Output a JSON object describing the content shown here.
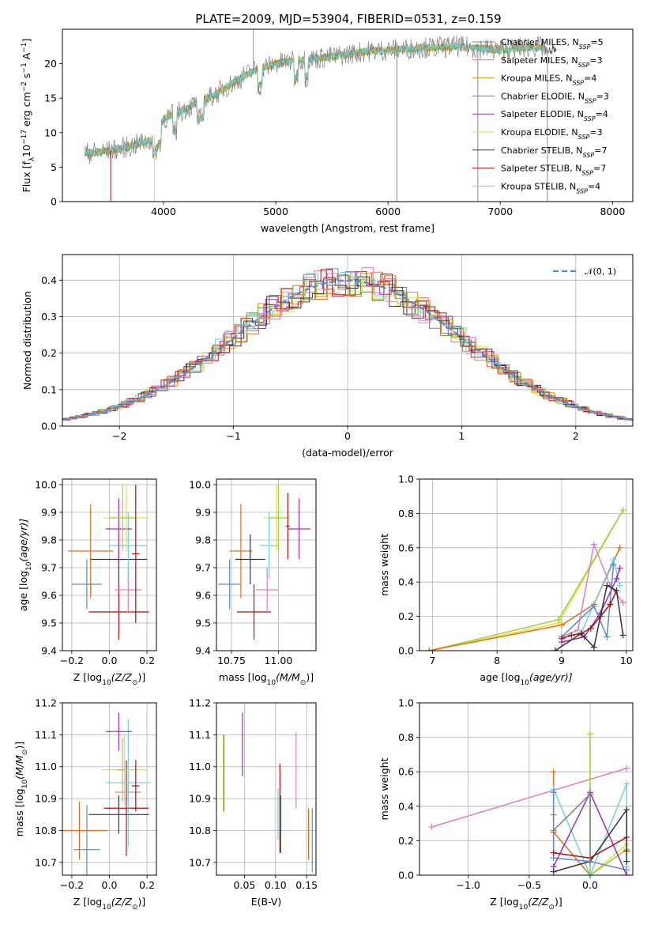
{
  "colors": {
    "chabrier_miles": "#808080",
    "salpeter_miles": "#e07a7a",
    "kroupa_miles": "#d99a00",
    "chabrier_elodie": "#5a9a3a",
    "salpeter_elodie": "#9b30b0",
    "kroupa_elodie": "#e0e040",
    "chabrier_stelib": "#333333",
    "salpeter_stelib": "#b01010",
    "kroupa_stelib": "#70d0e0",
    "normal": "#4a90d9",
    "extra_orange": "#e07020",
    "extra_blue": "#5a8ad0",
    "extra_pink": "#e080c0",
    "extra_lime": "#a0d040"
  },
  "chart_data": [
    {
      "id": "spectrum",
      "type": "line",
      "title": "PLATE=2009, MJD=53904, FIBERID=0531, z=0.159",
      "xlabel": "wavelength [Angstrom, rest frame]",
      "ylabel_main": "Flux [f",
      "ylabel_sub": "λ",
      "ylabel_mid": "10",
      "ylabel_sup": "−17",
      "ylabel_rest": " erg cm",
      "ylabel_sup2": "−2",
      "ylabel_s": " s",
      "ylabel_sup3": "−1",
      "ylabel_A": " A",
      "ylabel_sup4": "−1",
      "ylabel_end": "]",
      "xlim": [
        3100,
        8180
      ],
      "ylim": [
        0,
        25
      ],
      "xticks": [
        "4000",
        "5000",
        "6000",
        "7000",
        "8000"
      ],
      "yticks": [
        "0",
        "5",
        "10",
        "15",
        "20"
      ],
      "legend": [
        {
          "name": "Chabrier MILES, N",
          "sub": "SSP",
          "val": "=5",
          "color": "chabrier_miles"
        },
        {
          "name": "Salpeter MILES, N",
          "sub": "SSP",
          "val": "=3",
          "color": "salpeter_miles"
        },
        {
          "name": "Kroupa MILES, N",
          "sub": "SSP",
          "val": "=4",
          "color": "kroupa_miles"
        },
        {
          "name": "Chabrier ELODIE, N",
          "sub": "SSP",
          "val": "=3",
          "color": "chabrier_elodie"
        },
        {
          "name": "Salpeter ELODIE, N",
          "sub": "SSP",
          "val": "=4",
          "color": "salpeter_elodie"
        },
        {
          "name": "Kroupa ELODIE, N",
          "sub": "SSP",
          "val": "=3",
          "color": "kroupa_elodie"
        },
        {
          "name": "Chabrier STELIB, N",
          "sub": "SSP",
          "val": "=7",
          "color": "chabrier_stelib"
        },
        {
          "name": "Salpeter STELIB, N",
          "sub": "SSP",
          "val": "=7",
          "color": "salpeter_stelib"
        },
        {
          "name": "Kroupa STELIB, N",
          "sub": "SSP",
          "val": "=4",
          "color": "kroupa_stelib"
        }
      ],
      "continuum": [
        [
          3300,
          7.0
        ],
        [
          3500,
          7.3
        ],
        [
          3700,
          8.0
        ],
        [
          3900,
          9.0
        ],
        [
          4000,
          12.0
        ],
        [
          4200,
          13.5
        ],
        [
          4400,
          15.0
        ],
        [
          4600,
          17.0
        ],
        [
          4800,
          19.0
        ],
        [
          5000,
          20.0
        ],
        [
          5200,
          20.5
        ],
        [
          5500,
          21.0
        ],
        [
          5800,
          21.8
        ],
        [
          6000,
          22.0
        ],
        [
          6300,
          22.3
        ],
        [
          6600,
          22.5
        ],
        [
          7000,
          22.0
        ],
        [
          7300,
          22.5
        ],
        [
          7400,
          22.3
        ]
      ],
      "vertical_features": [
        3530,
        3920,
        6080,
        6800,
        7420
      ]
    },
    {
      "id": "residuals",
      "type": "histogram",
      "xlabel": "(data-model)/error",
      "ylabel": "Normed distribution",
      "xlim": [
        -2.5,
        2.5
      ],
      "ylim": [
        0,
        0.47
      ],
      "xticks": [
        "−2",
        "−1",
        "0",
        "1",
        "2"
      ],
      "yticks": [
        "0.0",
        "0.1",
        "0.2",
        "0.3",
        "0.4"
      ],
      "legend_label": "𝒩(0, 1)",
      "bin_width": 0.1
    },
    {
      "id": "age-vs-z",
      "type": "scatter",
      "xlabel": "Z [log",
      "xlabel_sub": "10",
      "xlabel_rest": "(Z/Z",
      "xlabel_sub2": "⊙",
      "xlabel_end": ")]",
      "ylabel": "age  [log",
      "ylabel_sub": "10",
      "ylabel_rest": "(age/yr)]",
      "xlim": [
        -0.25,
        0.25
      ],
      "ylim": [
        9.4,
        10.02
      ],
      "xticks": [
        "−0.2",
        "0.0",
        "0.2"
      ],
      "yticks": [
        "9.4",
        "9.5",
        "9.6",
        "9.7",
        "9.8",
        "9.9",
        "10.0"
      ],
      "points": [
        {
          "x": -0.12,
          "y": 9.64,
          "ex": 0.08,
          "ey": 0.09,
          "color": "extra_blue"
        },
        {
          "x": -0.1,
          "y": 9.76,
          "ex": 0.12,
          "ey": 0.17,
          "color": "extra_orange"
        },
        {
          "x": 0.05,
          "y": 9.73,
          "ex": 0.15,
          "ey": 0.09,
          "color": "chabrier_stelib"
        },
        {
          "x": 0.05,
          "y": 9.54,
          "ex": 0.16,
          "ey": 0.1,
          "color": "salpeter_stelib"
        },
        {
          "x": 0.1,
          "y": 9.62,
          "ex": 0.07,
          "ey": 0.08,
          "color": "extra_pink"
        },
        {
          "x": 0.1,
          "y": 9.78,
          "ex": 0.1,
          "ey": 0.12,
          "color": "kroupa_stelib"
        },
        {
          "x": 0.05,
          "y": 9.84,
          "ex": 0.07,
          "ey": 0.11,
          "color": "salpeter_elodie"
        },
        {
          "x": 0.09,
          "y": 9.88,
          "ex": 0.12,
          "ey": 0.12,
          "color": "kroupa_elodie"
        },
        {
          "x": 0.07,
          "y": 9.88,
          "ex": 0.07,
          "ey": 0.12,
          "color": "extra_lime"
        },
        {
          "x": 0.14,
          "y": 9.75,
          "ex": 0.02,
          "ey": 0.25,
          "color": "salpeter_stelib"
        }
      ]
    },
    {
      "id": "age-vs-mass",
      "type": "scatter",
      "xlabel": "mass [log",
      "xlabel_sub": "10",
      "xlabel_rest": "(M/M",
      "xlabel_sub2": "⊙",
      "xlabel_end": ")]",
      "xlim": [
        10.67,
        11.2
      ],
      "ylim": [
        9.4,
        10.02
      ],
      "xticks": [
        "10.75",
        "11.00"
      ],
      "yticks": [
        "9.4",
        "9.5",
        "9.6",
        "9.7",
        "9.8",
        "9.9",
        "10.0"
      ],
      "points": [
        {
          "x": 10.74,
          "y": 9.64,
          "ex": 0.06,
          "ey": 0.09,
          "color": "extra_blue"
        },
        {
          "x": 10.8,
          "y": 9.76,
          "ex": 0.06,
          "ey": 0.17,
          "color": "extra_orange"
        },
        {
          "x": 10.85,
          "y": 9.73,
          "ex": 0.08,
          "ey": 0.09,
          "color": "chabrier_stelib"
        },
        {
          "x": 10.87,
          "y": 9.54,
          "ex": 0.09,
          "ey": 0.1,
          "color": "salpeter_stelib"
        },
        {
          "x": 10.94,
          "y": 9.62,
          "ex": 0.06,
          "ey": 0.08,
          "color": "extra_pink"
        },
        {
          "x": 10.95,
          "y": 9.78,
          "ex": 0.05,
          "ey": 0.12,
          "color": "kroupa_stelib"
        },
        {
          "x": 11.11,
          "y": 9.84,
          "ex": 0.06,
          "ey": 0.11,
          "color": "salpeter_elodie"
        },
        {
          "x": 10.99,
          "y": 9.88,
          "ex": 0.07,
          "ey": 0.12,
          "color": "kroupa_elodie"
        },
        {
          "x": 11.0,
          "y": 9.88,
          "ex": 0.05,
          "ey": 0.12,
          "color": "extra_lime"
        },
        {
          "x": 11.05,
          "y": 9.85,
          "ex": 0.01,
          "ey": 0.12,
          "color": "salpeter_stelib"
        }
      ]
    },
    {
      "id": "weight-vs-age",
      "type": "line",
      "xlabel": "age  [log",
      "xlabel_sub": "10",
      "xlabel_rest": "(age/yr)]",
      "ylabel": "mass weight",
      "xlim": [
        6.8,
        10.1
      ],
      "ylim": [
        0,
        1.0
      ],
      "xticks": [
        "7",
        "8",
        "9",
        "10"
      ],
      "yticks": [
        "0.0",
        "0.2",
        "0.4",
        "0.6",
        "0.8",
        "1.0"
      ],
      "series": [
        {
          "color": "kroupa_elodie",
          "x": [
            6.95,
            8.95,
            9.95
          ],
          "y": [
            0.0,
            0.16,
            0.82
          ]
        },
        {
          "color": "extra_lime",
          "x": [
            6.95,
            8.95,
            9.95
          ],
          "y": [
            0.0,
            0.18,
            0.82
          ]
        },
        {
          "color": "extra_orange",
          "x": [
            6.95,
            9.0,
            9.5,
            9.9
          ],
          "y": [
            0.0,
            0.15,
            0.27,
            0.6
          ]
        },
        {
          "color": "extra_pink",
          "x": [
            9.0,
            9.25,
            9.5,
            9.75,
            9.95
          ],
          "y": [
            0.08,
            0.12,
            0.62,
            0.38,
            0.28
          ]
        },
        {
          "color": "kroupa_stelib",
          "x": [
            8.9,
            9.3,
            9.8,
            9.9
          ],
          "y": [
            0.0,
            0.1,
            0.53,
            0.38
          ]
        },
        {
          "color": "extra_blue",
          "x": [
            9.0,
            9.5,
            9.7,
            9.8
          ],
          "y": [
            0.08,
            0.26,
            0.08,
            0.5
          ]
        },
        {
          "color": "salpeter_elodie",
          "x": [
            9.0,
            9.35,
            9.6,
            9.85,
            9.9
          ],
          "y": [
            0.05,
            0.08,
            0.22,
            0.42,
            0.48
          ]
        },
        {
          "color": "salpeter_stelib",
          "x": [
            9.0,
            9.15,
            9.3,
            9.45,
            9.6,
            9.75,
            9.85
          ],
          "y": [
            0.07,
            0.09,
            0.1,
            0.13,
            0.2,
            0.27,
            0.35
          ]
        },
        {
          "color": "chabrier_stelib",
          "x": [
            8.9,
            9.3,
            9.5,
            9.7,
            9.85,
            9.95
          ],
          "y": [
            0.0,
            0.1,
            0.02,
            0.38,
            0.35,
            0.09
          ]
        }
      ]
    },
    {
      "id": "mass-vs-z",
      "type": "scatter",
      "xlabel": "Z [log",
      "xlabel_sub": "10",
      "xlabel_rest": "(Z/Z",
      "xlabel_sub2": "⊙",
      "xlabel_end": ")]",
      "ylabel": "mass [log",
      "ylabel_sub": "10",
      "ylabel_rest": "(M/M",
      "ylabel_sub2": "⊙",
      "ylabel_end": ")]",
      "xlim": [
        -0.25,
        0.25
      ],
      "ylim": [
        10.66,
        11.2
      ],
      "xticks": [
        "−0.2",
        "0.0",
        "0.2"
      ],
      "yticks": [
        "10.7",
        "10.8",
        "10.9",
        "11.0",
        "11.1",
        "11.2"
      ],
      "points": [
        {
          "x": -0.12,
          "y": 10.74,
          "ex": 0.07,
          "ey": 0.14,
          "color": "extra_blue"
        },
        {
          "x": -0.16,
          "y": 10.8,
          "ex": 0.15,
          "ey": 0.09,
          "color": "extra_orange"
        },
        {
          "x": 0.05,
          "y": 10.85,
          "ex": 0.16,
          "ey": 0.06,
          "color": "chabrier_stelib"
        },
        {
          "x": 0.09,
          "y": 10.87,
          "ex": 0.12,
          "ey": 0.15,
          "color": "salpeter_stelib"
        },
        {
          "x": 0.1,
          "y": 10.92,
          "ex": 0.07,
          "ey": 0.03,
          "color": "extra_pink"
        },
        {
          "x": 0.1,
          "y": 10.95,
          "ex": 0.12,
          "ey": 0.2,
          "color": "kroupa_stelib"
        },
        {
          "x": 0.05,
          "y": 11.11,
          "ex": 0.07,
          "ey": 0.06,
          "color": "salpeter_elodie"
        },
        {
          "x": 0.08,
          "y": 10.99,
          "ex": 0.12,
          "ey": 0.11,
          "color": "kroupa_elodie"
        },
        {
          "x": 0.07,
          "y": 10.99,
          "ex": 0.03,
          "ey": 0.1,
          "color": "extra_lime"
        },
        {
          "x": 0.14,
          "y": 10.94,
          "ex": 0.02,
          "ey": 0.08,
          "color": "salpeter_stelib"
        }
      ]
    },
    {
      "id": "mass-vs-ebv",
      "type": "scatter",
      "xlabel": "E(B-V)",
      "xlim": [
        0.005,
        0.165
      ],
      "ylim": [
        10.66,
        11.2
      ],
      "xticks": [
        "0.05",
        "0.10",
        "0.15"
      ],
      "yticks": [
        "10.7",
        "10.8",
        "10.9",
        "11.0",
        "11.1",
        "11.2"
      ],
      "points": [
        {
          "x": 0.016,
          "y": 10.98,
          "ex": 0,
          "ey": 0.12,
          "color": "kroupa_elodie"
        },
        {
          "x": 0.017,
          "y": 10.98,
          "ex": 0,
          "ey": 0.12,
          "color": "chabrier_elodie"
        },
        {
          "x": 0.047,
          "y": 11.07,
          "ex": 0,
          "ey": 0.1,
          "color": "salpeter_elodie"
        },
        {
          "x": 0.104,
          "y": 10.85,
          "ex": 0,
          "ey": 0.08,
          "color": "kroupa_stelib"
        },
        {
          "x": 0.107,
          "y": 10.87,
          "ex": 0,
          "ey": 0.14,
          "color": "salpeter_stelib"
        },
        {
          "x": 0.108,
          "y": 10.82,
          "ex": 0,
          "ey": 0.09,
          "color": "chabrier_stelib"
        },
        {
          "x": 0.133,
          "y": 10.99,
          "ex": 0,
          "ey": 0.12,
          "color": "extra_pink"
        },
        {
          "x": 0.153,
          "y": 10.79,
          "ex": 0,
          "ey": 0.08,
          "color": "extra_orange"
        },
        {
          "x": 0.159,
          "y": 10.77,
          "ex": 0,
          "ey": 0.1,
          "color": "extra_blue"
        }
      ]
    },
    {
      "id": "weight-vs-z",
      "type": "line",
      "xlabel": "Z [log",
      "xlabel_sub": "10",
      "xlabel_rest": "(Z/Z",
      "xlabel_sub2": "⊙",
      "xlabel_end": ")]",
      "ylabel": "mass weight",
      "xlim": [
        -1.4,
        0.35
      ],
      "ylim": [
        0,
        1.0
      ],
      "xticks": [
        "−1.0",
        "−0.5",
        "0.0"
      ],
      "yticks": [
        "0.0",
        "0.2",
        "0.4",
        "0.6",
        "0.8",
        "1.0"
      ],
      "series": [
        {
          "color": "extra_pink",
          "x": [
            -1.3,
            0.3
          ],
          "y": [
            0.28,
            0.62
          ]
        },
        {
          "color": "extra_orange",
          "x": [
            -0.3,
            -0.3,
            0.0,
            0.3
          ],
          "y": [
            0.6,
            0.25,
            0.0,
            0.15
          ]
        },
        {
          "color": "kroupa_elodie",
          "x": [
            0.0,
            0.0,
            0.3
          ],
          "y": [
            0.82,
            0.0,
            0.18
          ]
        },
        {
          "color": "extra_lime",
          "x": [
            0.0,
            0.0,
            0.3
          ],
          "y": [
            0.82,
            0.0,
            0.15
          ]
        },
        {
          "color": "kroupa_stelib",
          "x": [
            -0.3,
            0.0,
            0.3,
            0.3
          ],
          "y": [
            0.5,
            0.0,
            0.53,
            0.05
          ]
        },
        {
          "color": "extra_blue",
          "x": [
            -0.3,
            -0.3,
            0.0,
            0.3
          ],
          "y": [
            0.48,
            0.1,
            0.08,
            0.03
          ]
        },
        {
          "color": "salpeter_elodie",
          "x": [
            -0.3,
            0.0,
            0.3
          ],
          "y": [
            0.05,
            0.48,
            0.0
          ]
        },
        {
          "color": "salpeter_stelib",
          "x": [
            -0.3,
            0.0,
            0.3,
            0.3
          ],
          "y": [
            0.13,
            0.1,
            0.22,
            0.14
          ]
        },
        {
          "color": "chabrier_stelib",
          "x": [
            -0.3,
            0.0,
            0.3,
            0.3
          ],
          "y": [
            0.02,
            0.08,
            0.38,
            0.08
          ]
        },
        {
          "color": "chabrier_miles",
          "x": [
            -0.3,
            -0.3,
            0.0,
            0.0
          ],
          "y": [
            0.35,
            0.26,
            0.47,
            0.08
          ]
        }
      ]
    }
  ]
}
